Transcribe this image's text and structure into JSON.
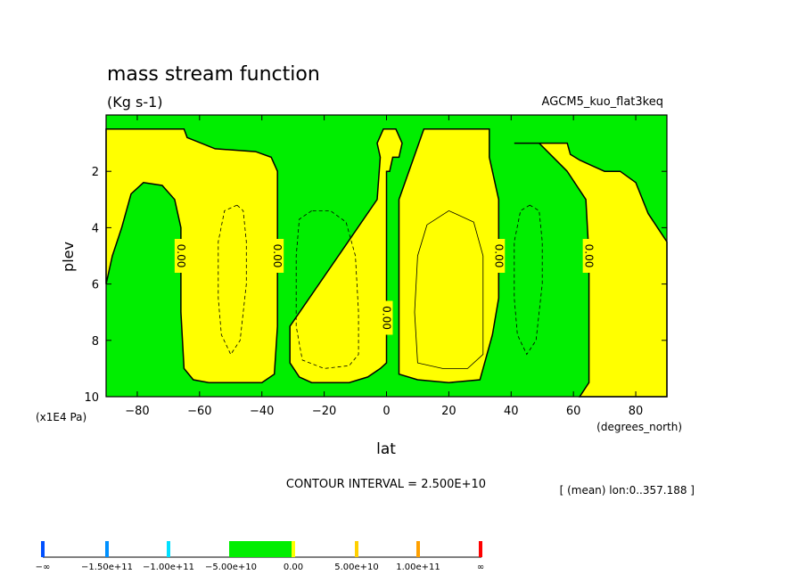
{
  "chart_data": {
    "type": "contour",
    "title": "mass stream function",
    "units": "(Kg s-1)",
    "dataset": "AGCM5_kuo_flat3keq",
    "xlabel": "lat",
    "xunits": "(degrees_north)",
    "ylabel": "plev",
    "yunits": "(x1E4 Pa)",
    "xlim": [
      -90,
      90
    ],
    "ylim": [
      0,
      10
    ],
    "y_inverted": true,
    "xticks": [
      -80,
      -60,
      -40,
      -20,
      0,
      20,
      40,
      60,
      80
    ],
    "xtick_labels": [
      "−80",
      "−60",
      "−40",
      "−20",
      "0",
      "20",
      "40",
      "60",
      "80"
    ],
    "yticks": [
      2,
      4,
      6,
      8,
      10
    ],
    "ytick_labels": [
      "2",
      "4",
      "6",
      "8",
      "10"
    ],
    "contour_interval_text": "CONTOUR INTERVAL = 2.500E+10",
    "mean_text": "[ (mean) lon:0..357.188 ]",
    "positive_color": "#ffff00",
    "negative_color": "#00ee00",
    "zero_contour_labels": [
      "0.00",
      "0.00",
      "0.00",
      "0.00",
      "0.00"
    ],
    "zero_label_positions": [
      {
        "lat": -66,
        "plev": 5.0
      },
      {
        "lat": -35,
        "plev": 5.0
      },
      {
        "lat": 0,
        "plev": 7.2
      },
      {
        "lat": 36,
        "plev": 5.0
      },
      {
        "lat": 65,
        "plev": 5.0
      }
    ],
    "colorbar": {
      "labels": [
        "−∞",
        "−1.50e+11",
        "−1.00e+11",
        "−5.00e+10",
        "0.00",
        "5.00e+10",
        "1.00e+11",
        "∞"
      ],
      "colors": [
        "#0050ff",
        "#0090ff",
        "#00e0ff",
        "#00ee00",
        "#ffff00",
        "#ffd000",
        "#ffa000",
        "#ff0000"
      ]
    },
    "regions": [
      {
        "sign": "positive",
        "polygon": [
          [
            -90,
            0.5
          ],
          [
            -65,
            0.5
          ],
          [
            -64,
            0.8
          ],
          [
            -55,
            1.2
          ],
          [
            -42,
            1.3
          ],
          [
            -37,
            1.5
          ],
          [
            -35,
            2.0
          ],
          [
            -35,
            5.0
          ],
          [
            -35,
            7.5
          ],
          [
            -36,
            9.2
          ],
          [
            -40,
            9.5
          ],
          [
            -57,
            9.5
          ],
          [
            -62,
            9.4
          ],
          [
            -65,
            9.0
          ],
          [
            -66,
            7.0
          ],
          [
            -66,
            4.0
          ],
          [
            -68,
            3.0
          ],
          [
            -72,
            2.5
          ],
          [
            -78,
            2.4
          ],
          [
            -82,
            2.8
          ],
          [
            -85,
            4.0
          ],
          [
            -88,
            5.0
          ],
          [
            -90,
            6.0
          ]
        ]
      },
      {
        "sign": "positive",
        "polygon": [
          [
            -1,
            0.5
          ],
          [
            1,
            0.5
          ],
          [
            3,
            0.5
          ],
          [
            5,
            1.0
          ],
          [
            4,
            1.5
          ],
          [
            2,
            1.5
          ],
          [
            1,
            2.0
          ],
          [
            0,
            2.0
          ],
          [
            0,
            5.0
          ],
          [
            0,
            8.0
          ],
          [
            0,
            8.8
          ],
          [
            -2,
            9.0
          ],
          [
            -6,
            9.3
          ],
          [
            -12,
            9.5
          ],
          [
            -18,
            9.5
          ],
          [
            -24,
            9.5
          ],
          [
            -28,
            9.3
          ],
          [
            -31,
            8.8
          ],
          [
            -31,
            7.5
          ],
          [
            -3,
            3.0
          ],
          [
            -2,
            1.5
          ],
          [
            -3,
            1.0
          ]
        ]
      },
      {
        "sign": "positive",
        "polygon": [
          [
            12,
            0.5
          ],
          [
            33,
            0.5
          ],
          [
            33,
            1.5
          ],
          [
            34,
            2.0
          ],
          [
            36,
            3.0
          ],
          [
            36,
            5.0
          ],
          [
            36,
            6.5
          ],
          [
            34,
            7.8
          ],
          [
            31,
            9.0
          ],
          [
            30,
            9.4
          ],
          [
            20,
            9.5
          ],
          [
            10,
            9.4
          ],
          [
            4,
            9.2
          ],
          [
            4,
            6.0
          ],
          [
            4,
            3.0
          ]
        ]
      },
      {
        "sign": "positive",
        "polygon": [
          [
            41,
            1.0
          ],
          [
            50,
            1.0
          ],
          [
            58,
            1.0
          ],
          [
            59,
            1.4
          ],
          [
            62,
            1.6
          ],
          [
            66,
            1.8
          ],
          [
            70,
            2.0
          ],
          [
            75,
            2.0
          ],
          [
            80,
            2.4
          ],
          [
            84,
            3.5
          ],
          [
            87,
            4.0
          ],
          [
            90,
            4.5
          ],
          [
            90,
            10
          ],
          [
            62,
            10
          ],
          [
            65,
            9.5
          ],
          [
            65,
            8.5
          ],
          [
            65,
            5.0
          ],
          [
            64,
            3.0
          ],
          [
            58,
            2.0
          ],
          [
            49,
            1.0
          ]
        ]
      }
    ],
    "dashed_contours": [
      [
        [
          -48,
          3.2
        ],
        [
          -52,
          3.4
        ],
        [
          -54,
          4.5
        ],
        [
          -54,
          6.5
        ],
        [
          -53,
          7.8
        ],
        [
          -50,
          8.5
        ],
        [
          -47,
          8.0
        ],
        [
          -45,
          6.0
        ],
        [
          -45,
          4.5
        ],
        [
          -46,
          3.4
        ]
      ],
      [
        [
          -24,
          3.4
        ],
        [
          -28,
          3.7
        ],
        [
          -29,
          5.0
        ],
        [
          -29,
          7.5
        ],
        [
          -27,
          8.7
        ],
        [
          -20,
          9.0
        ],
        [
          -12,
          8.9
        ],
        [
          -9,
          8.5
        ],
        [
          -9,
          7.0
        ],
        [
          -10,
          5.0
        ],
        [
          -13,
          3.8
        ],
        [
          -18,
          3.4
        ]
      ],
      [
        [
          46,
          3.2
        ],
        [
          43,
          3.4
        ],
        [
          41,
          4.5
        ],
        [
          41,
          6.5
        ],
        [
          42,
          7.8
        ],
        [
          45,
          8.5
        ],
        [
          48,
          8.0
        ],
        [
          50,
          6.0
        ],
        [
          50,
          4.5
        ],
        [
          49,
          3.4
        ]
      ]
    ],
    "solid_contours": [
      [
        [
          20,
          3.4
        ],
        [
          13,
          3.9
        ],
        [
          10,
          5.0
        ],
        [
          9,
          7.0
        ],
        [
          10,
          8.8
        ],
        [
          18,
          9.0
        ],
        [
          26,
          9.0
        ],
        [
          31,
          8.5
        ],
        [
          31,
          7.0
        ],
        [
          31,
          5.0
        ],
        [
          28,
          3.8
        ]
      ]
    ]
  }
}
